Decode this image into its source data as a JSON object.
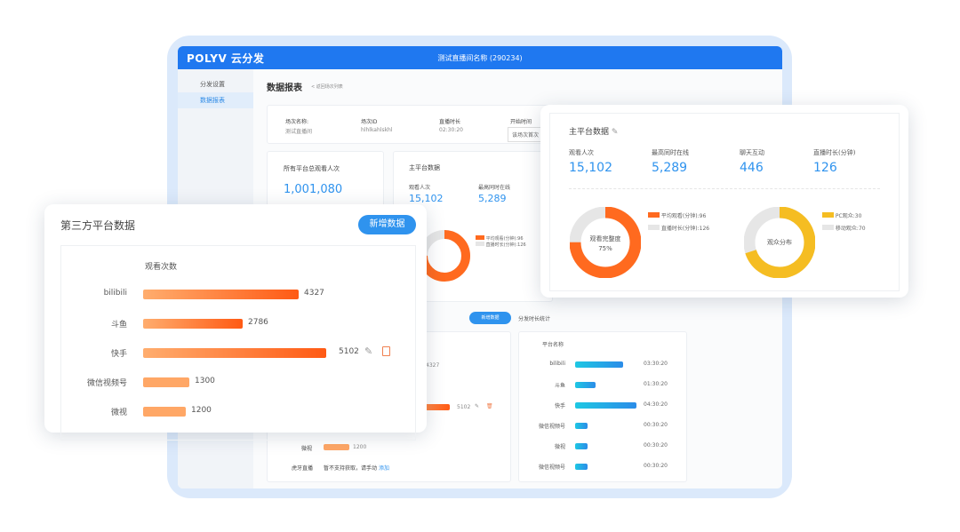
{
  "app": {
    "logo": "POLYV 云分发",
    "title": "测试直播间名称 (290234)"
  },
  "sidebar": {
    "items": [
      {
        "label": "分发设置",
        "active": false
      },
      {
        "label": "数据报表",
        "active": true
      }
    ]
  },
  "page": {
    "title": "数据报表",
    "back_link": "< 返回场次列表"
  },
  "session": {
    "fields": [
      {
        "label": "场次名称:",
        "value": "测试直播间"
      },
      {
        "label": "场次ID",
        "value": "hlhlkahlskhl"
      },
      {
        "label": "直播时长",
        "value": "02:30:20"
      },
      {
        "label": "开始时间",
        "value": "该场次首次"
      }
    ]
  },
  "total": {
    "label": "所有平台总观看人次",
    "value": "1,001,080"
  },
  "main_platform": {
    "title": "主平台数据",
    "stats": [
      {
        "label": "观看人次",
        "value": "15,102"
      },
      {
        "label": "最高同时在线",
        "value": "5,289"
      },
      {
        "label": "聊天互动",
        "value": "446"
      },
      {
        "label": "直播时长(分钟)",
        "value": "126"
      }
    ],
    "completion": {
      "center_label": "观看完整度",
      "center_value": "75%",
      "fraction": 0.75,
      "legend": [
        "平均观看(分钟):96",
        "直播时长(分钟):126"
      ],
      "colors": [
        "#ff6a1f",
        "#e6e6e6"
      ]
    },
    "audience": {
      "center_label": "观众分布",
      "fraction": 0.7,
      "legend": [
        "PC观众:30",
        "移动观众:70"
      ],
      "colors": [
        "#f5bd22",
        "#e6e6e6"
      ]
    }
  },
  "third_party": {
    "title": "第三方平台数据",
    "add_button": "新增数据",
    "column": "观看次数",
    "rows": [
      {
        "name": "bilibili",
        "value": 4327
      },
      {
        "name": "斗鱼",
        "value": 2786
      },
      {
        "name": "快手",
        "value": 5102
      },
      {
        "name": "微信视频号",
        "value": 1300
      },
      {
        "name": "微视",
        "value": 1200
      }
    ],
    "bg_rows": [
      {
        "name": "微视",
        "value": "1200"
      }
    ],
    "huya": {
      "name": "虎牙直播",
      "text": "暂不支持获取，请手动",
      "link": "添加"
    }
  },
  "bg_values": {
    "v4327": "4327",
    "v5102": "5102"
  },
  "duration": {
    "tab": "分发时长统计",
    "add_button": "新增数据",
    "header": "平台名称",
    "rows": [
      {
        "name": "bilibili",
        "time": "03:30:20",
        "hours": 3.5
      },
      {
        "name": "斗鱼",
        "time": "01:30:20",
        "hours": 1.5
      },
      {
        "name": "快手",
        "time": "04:30:20",
        "hours": 4.5
      },
      {
        "name": "微信视频号",
        "time": "00:30:20",
        "hours": 0.5
      },
      {
        "name": "微视",
        "time": "00:30:20",
        "hours": 0.5
      },
      {
        "name": "微信视频号",
        "time": "00:30:20",
        "hours": 0.5
      }
    ]
  }
}
